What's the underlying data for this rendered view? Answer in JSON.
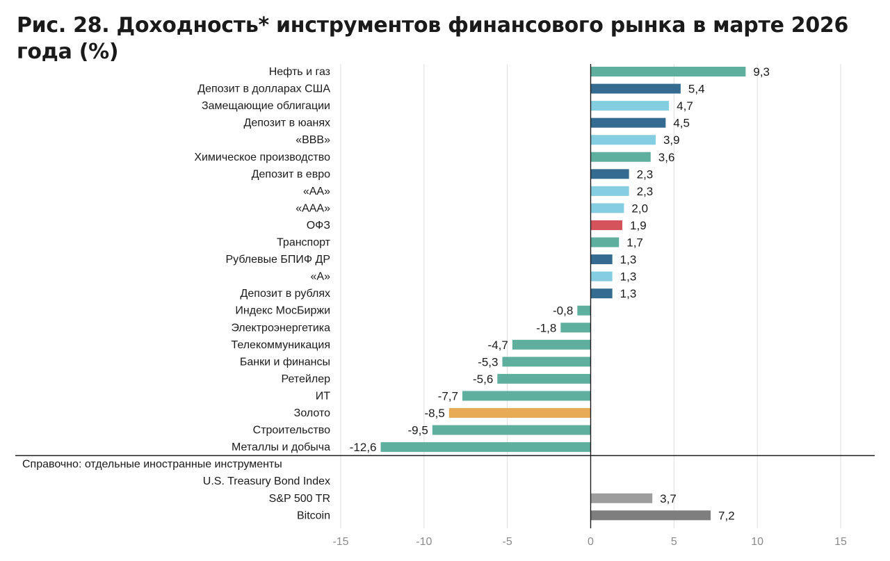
{
  "title": "Рис. 28. Доходность* инструментов финансового рынка в марте 2026 года (%)",
  "chart_data": {
    "type": "bar",
    "orientation": "horizontal",
    "title": "Рис. 28. Доходность* инструментов финансового рынка в марте 2026 года (%)",
    "xlim": [
      -15,
      15
    ],
    "xticks": [
      "-15",
      "-10",
      "-5",
      "0",
      "5",
      "10",
      "15"
    ],
    "grid": true,
    "colors": {
      "sector": "#5faf9f",
      "deposit": "#356a91",
      "bond": "#85cde0",
      "ofz": "#d5535b",
      "gold": "#e8ab55",
      "foreign_light": "#9d9d9d",
      "foreign_dark": "#7e7e7e"
    },
    "categories": [
      {
        "label": "Нефть и газ",
        "value": 9.3,
        "value_label": "9,3",
        "group": "sector"
      },
      {
        "label": "Депозит в долларах США",
        "value": 5.4,
        "value_label": "5,4",
        "group": "deposit"
      },
      {
        "label": "Замещающие облигации",
        "value": 4.7,
        "value_label": "4,7",
        "group": "bond"
      },
      {
        "label": "Депозит в юанях",
        "value": 4.5,
        "value_label": "4,5",
        "group": "deposit"
      },
      {
        "label": "«BBB»",
        "value": 3.9,
        "value_label": "3,9",
        "group": "bond"
      },
      {
        "label": "Химическое производство",
        "value": 3.6,
        "value_label": "3,6",
        "group": "sector"
      },
      {
        "label": "Депозит в евро",
        "value": 2.3,
        "value_label": "2,3",
        "group": "deposit"
      },
      {
        "label": "«AA»",
        "value": 2.3,
        "value_label": "2,3",
        "group": "bond"
      },
      {
        "label": "«AAA»",
        "value": 2.0,
        "value_label": "2,0",
        "group": "bond"
      },
      {
        "label": "ОФЗ",
        "value": 1.9,
        "value_label": "1,9",
        "group": "ofz"
      },
      {
        "label": "Транспорт",
        "value": 1.7,
        "value_label": "1,7",
        "group": "sector"
      },
      {
        "label": "Рублевые БПИФ ДР",
        "value": 1.3,
        "value_label": "1,3",
        "group": "deposit"
      },
      {
        "label": "«A»",
        "value": 1.3,
        "value_label": "1,3",
        "group": "bond"
      },
      {
        "label": "Депозит в рублях",
        "value": 1.3,
        "value_label": "1,3",
        "group": "deposit"
      },
      {
        "label": "Индекс МосБиржи",
        "value": -0.8,
        "value_label": "-0,8",
        "group": "sector"
      },
      {
        "label": "Электроэнергетика",
        "value": -1.8,
        "value_label": "-1,8",
        "group": "sector"
      },
      {
        "label": "Телекоммуникация",
        "value": -4.7,
        "value_label": "-4,7",
        "group": "sector"
      },
      {
        "label": "Банки и финансы",
        "value": -5.3,
        "value_label": "-5,3",
        "group": "sector"
      },
      {
        "label": "Ретейлер",
        "value": -5.6,
        "value_label": "-5,6",
        "group": "sector"
      },
      {
        "label": "ИТ",
        "value": -7.7,
        "value_label": "-7,7",
        "group": "sector"
      },
      {
        "label": "Золото",
        "value": -8.5,
        "value_label": "-8,5",
        "group": "gold"
      },
      {
        "label": "Строительство",
        "value": -9.5,
        "value_label": "-9,5",
        "group": "sector"
      },
      {
        "label": "Металлы и добыча",
        "value": -12.6,
        "value_label": "-12,6",
        "group": "sector"
      },
      {
        "label": "Справочно: отдельные иностранные инструменты",
        "value": null,
        "value_label": "",
        "group": "header"
      },
      {
        "label": "U.S. Treasury Bond Index",
        "value": null,
        "value_label": "",
        "group": "foreign_light"
      },
      {
        "label": "S&P 500 TR",
        "value": 3.7,
        "value_label": "3,7",
        "group": "foreign_light"
      },
      {
        "label": "Bitcoin",
        "value": 7.2,
        "value_label": "7,2",
        "group": "foreign_dark"
      }
    ]
  }
}
